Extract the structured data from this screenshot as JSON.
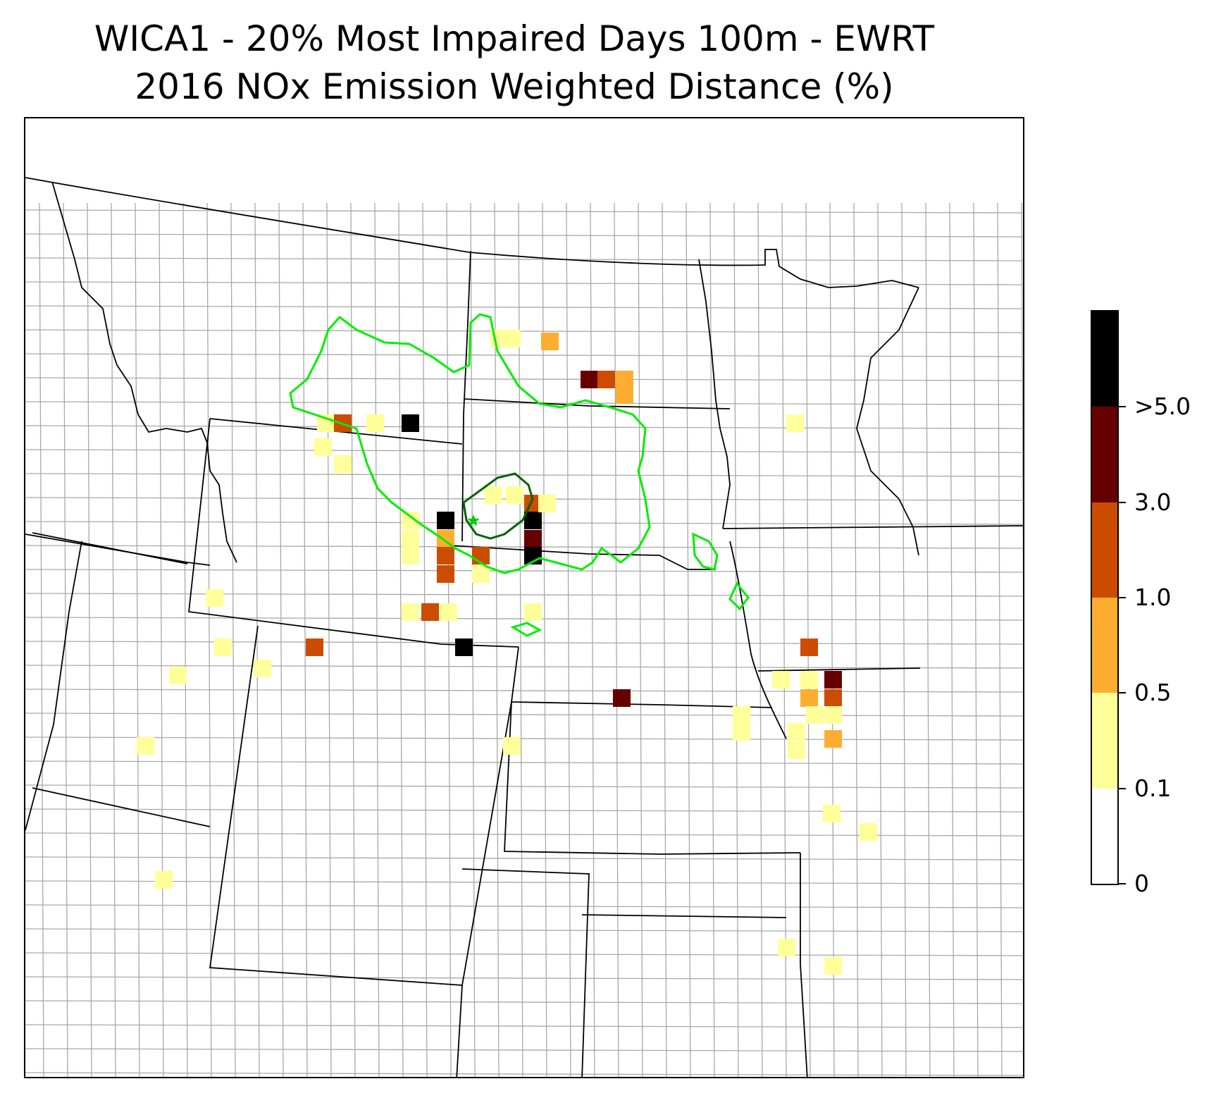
{
  "title": {
    "line1": "WICA1 - 20% Most Impaired Days 100m - EWRT",
    "line2": "2016 NOx Emission Weighted Distance (%)"
  },
  "colors": {
    "state_border": "#000000",
    "county_border": "#a8a8a8",
    "contour_outer": "#00ee00",
    "contour_inner": "#006400",
    "site_marker": "#00cc00"
  },
  "colorbar": {
    "bins": [
      {
        "range": "0-0.1",
        "color": "#ffffff"
      },
      {
        "range": "0.1-0.5",
        "color": "#ffff99"
      },
      {
        "range": "0.5-1.0",
        "color": "#fdae30"
      },
      {
        "range": "1.0-3.0",
        "color": "#cc4c02"
      },
      {
        "range": "3.0-5.0",
        "color": "#660000"
      },
      {
        "range": ">5.0",
        "color": "#000000"
      }
    ],
    "tick_labels": [
      "0",
      "0.1",
      "0.5",
      "1.0",
      "3.0",
      ">5.0"
    ]
  },
  "map": {
    "site_marker": "star-icon",
    "site_name": "WICA1"
  }
}
